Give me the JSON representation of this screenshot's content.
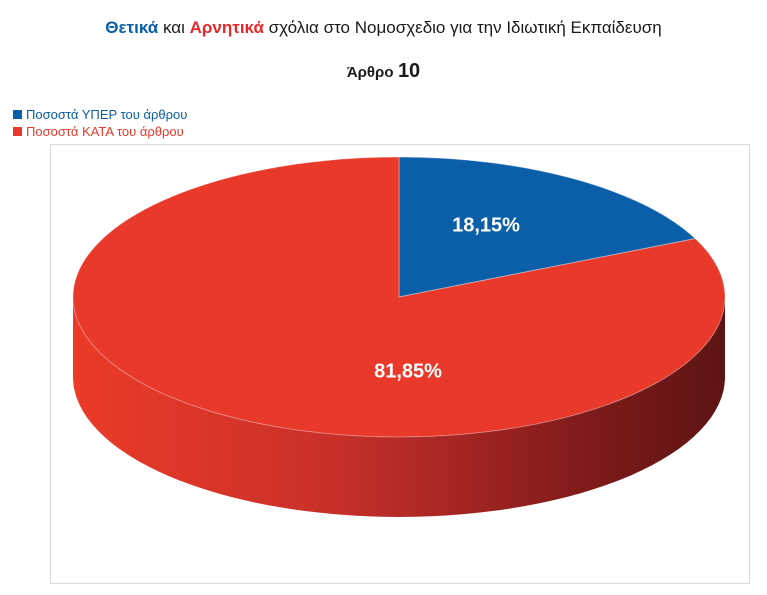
{
  "title": {
    "positive": "Θετικά",
    "conj": "και",
    "negative": "Αρνητικά",
    "rest": "σχόλια στο Νομοσχεδιο για την Ιδιωτική Εκπαίδευση"
  },
  "subtitle": {
    "label": "Άρθρο",
    "number": "10"
  },
  "legend": [
    {
      "before": "Ποσοστά",
      "highlight": "ΥΠΕΡ",
      "after": "του άρθρου",
      "color": "#0b5ea8"
    },
    {
      "before": "Ποσοστά",
      "highlight": "ΚΑΤΑ",
      "after": "του άρθρου",
      "color": "#e8392b"
    }
  ],
  "chart_data": {
    "type": "pie",
    "style": "3d",
    "categories": [
      "Ποσοστά ΥΠΕΡ του άρθρου",
      "Ποσοστά ΚΑΤΑ του άρθρου"
    ],
    "values": [
      18.15,
      81.85
    ],
    "labels": [
      "18,15%",
      "81,85%"
    ],
    "colors": [
      "#0b5ea8",
      "#e8392b"
    ],
    "legend_position": "top-left"
  }
}
